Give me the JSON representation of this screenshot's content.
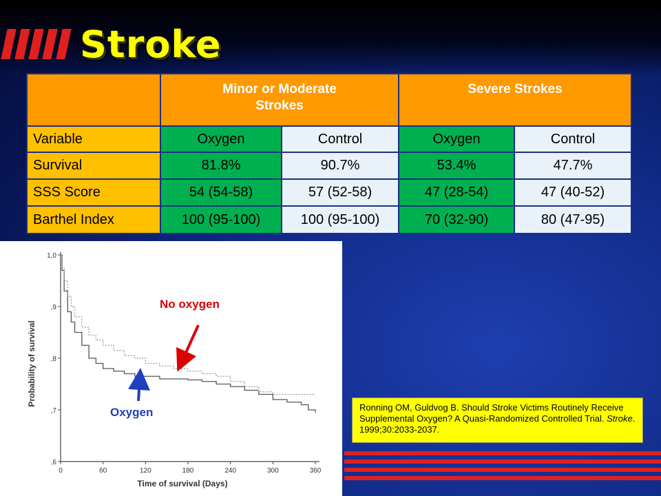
{
  "slide": {
    "title": "Stroke"
  },
  "table": {
    "group_headers": [
      "Minor or Moderate Strokes",
      "Severe Strokes"
    ],
    "group_header_lines": [
      [
        "Minor or Moderate",
        "Strokes"
      ],
      [
        "Severe Strokes"
      ]
    ],
    "columns": [
      "Variable",
      "Oxygen",
      "Control",
      "Oxygen",
      "Control"
    ],
    "rows": [
      {
        "label": "Survival",
        "values": [
          "81.8%",
          "90.7%",
          "53.4%",
          "47.7%"
        ]
      },
      {
        "label": "SSS Score",
        "values": [
          "54 (54-58)",
          "57 (52-58)",
          "47 (28-54)",
          "47 (40-52)"
        ]
      },
      {
        "label": "Barthel Index",
        "values": [
          "100 (95-100)",
          "100 (95-100)",
          "70 (32-90)",
          "80 (47-95)"
        ]
      }
    ]
  },
  "annotations": {
    "no_oxygen": "No oxygen",
    "oxygen": "Oxygen"
  },
  "citation": {
    "text_before": "Ronning OM, Guldvog B. Should Stroke Victims Routinely Receive Supplemental Oxygen? A Quasi-Randomized Controlled Trial.  ",
    "journal": "Stroke",
    "text_after": ". 1999;30:2033-2037."
  },
  "colors": {
    "title": "#ffff00",
    "header_orange": "#ff9900",
    "label_yellow": "#ffc000",
    "oxygen_green": "#00b050",
    "control_light": "#e8f2f8",
    "accent_red": "#e02020",
    "no_oxygen_label": "#dd0000",
    "oxygen_label": "#1f3fbf"
  },
  "chart_data": {
    "type": "line",
    "xlabel": "Time of survival (Days)",
    "ylabel": "Probability of survival",
    "xlim": [
      0,
      360
    ],
    "ylim": [
      0.6,
      1.0
    ],
    "x_ticks": [
      0,
      60,
      120,
      180,
      240,
      300,
      360
    ],
    "y_ticks": [
      1.0,
      0.9,
      0.8,
      0.7,
      0.6
    ],
    "y_tick_labels": [
      "1,0",
      ",9",
      ",8",
      ",7",
      ",6"
    ],
    "series": [
      {
        "name": "Oxygen",
        "style": "solid",
        "x": [
          0,
          2,
          5,
          10,
          15,
          20,
          30,
          40,
          50,
          60,
          75,
          90,
          105,
          120,
          140,
          160,
          180,
          200,
          220,
          240,
          260,
          280,
          300,
          320,
          340,
          350,
          360
        ],
        "y": [
          1.0,
          0.97,
          0.93,
          0.89,
          0.87,
          0.85,
          0.825,
          0.8,
          0.79,
          0.78,
          0.775,
          0.77,
          0.765,
          0.765,
          0.76,
          0.76,
          0.758,
          0.755,
          0.75,
          0.745,
          0.738,
          0.73,
          0.72,
          0.715,
          0.71,
          0.7,
          0.695
        ]
      },
      {
        "name": "No oxygen",
        "style": "dotted",
        "x": [
          0,
          2,
          5,
          10,
          15,
          20,
          30,
          40,
          50,
          60,
          75,
          90,
          105,
          120,
          140,
          160,
          180,
          200,
          220,
          240,
          260,
          280,
          300,
          320,
          340,
          350,
          360
        ],
        "y": [
          1.0,
          0.975,
          0.95,
          0.92,
          0.9,
          0.88,
          0.86,
          0.845,
          0.835,
          0.825,
          0.815,
          0.805,
          0.8,
          0.79,
          0.785,
          0.78,
          0.775,
          0.77,
          0.765,
          0.755,
          0.745,
          0.735,
          0.73,
          0.73,
          0.73,
          0.73,
          0.73
        ]
      }
    ]
  }
}
